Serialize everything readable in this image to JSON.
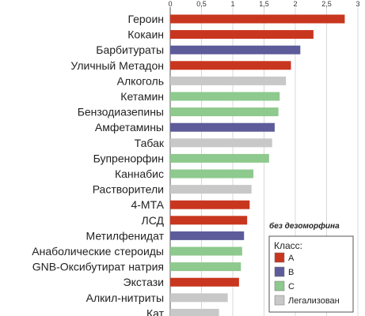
{
  "chart_data": {
    "type": "bar",
    "orientation": "horizontal",
    "categories": [
      "Героин",
      "Кокаин",
      "Барбитураты",
      "Уличный Метадон",
      "Алкоголь",
      "Кетамин",
      "Бензодиазепины",
      "Амфетамины",
      "Табак",
      "Бупренорфин",
      "Каннабис",
      "Растворители",
      "4-МТА",
      "ЛСД",
      "Метилфенидат",
      "Анаболические стероиды",
      "GNB-Оксибутират натрия",
      "Экстази",
      "Алкил-нитриты",
      "Кат"
    ],
    "values": [
      2.79,
      2.29,
      2.08,
      1.93,
      1.85,
      1.75,
      1.73,
      1.67,
      1.63,
      1.58,
      1.33,
      1.3,
      1.27,
      1.23,
      1.18,
      1.15,
      1.13,
      1.1,
      0.92,
      0.78
    ],
    "classes": [
      "A",
      "A",
      "B",
      "A",
      "L",
      "C",
      "C",
      "B",
      "L",
      "C",
      "C",
      "L",
      "A",
      "A",
      "B",
      "C",
      "C",
      "A",
      "L",
      "L"
    ],
    "xlim": [
      0,
      3
    ],
    "x_ticks": [
      "0",
      "0,5",
      "1",
      "1,5",
      "2",
      "2,5",
      "3"
    ],
    "x_tick_values": [
      0,
      0.5,
      1,
      1.5,
      2,
      2.5,
      3
    ],
    "grid": true,
    "annotation": "без дезоморфина",
    "legend": {
      "title": "Класс:",
      "position": "bottom-right",
      "items": [
        {
          "key": "A",
          "label": "A",
          "color": "#c8361f"
        },
        {
          "key": "B",
          "label": "B",
          "color": "#5d5b9a"
        },
        {
          "key": "C",
          "label": "C",
          "color": "#8ec98d"
        },
        {
          "key": "L",
          "label": "Легализован",
          "color": "#c8c8c8"
        }
      ]
    }
  },
  "colors": {
    "A": "#c8361f",
    "B": "#5d5b9a",
    "C": "#8ec98d",
    "L": "#c8c8c8"
  }
}
